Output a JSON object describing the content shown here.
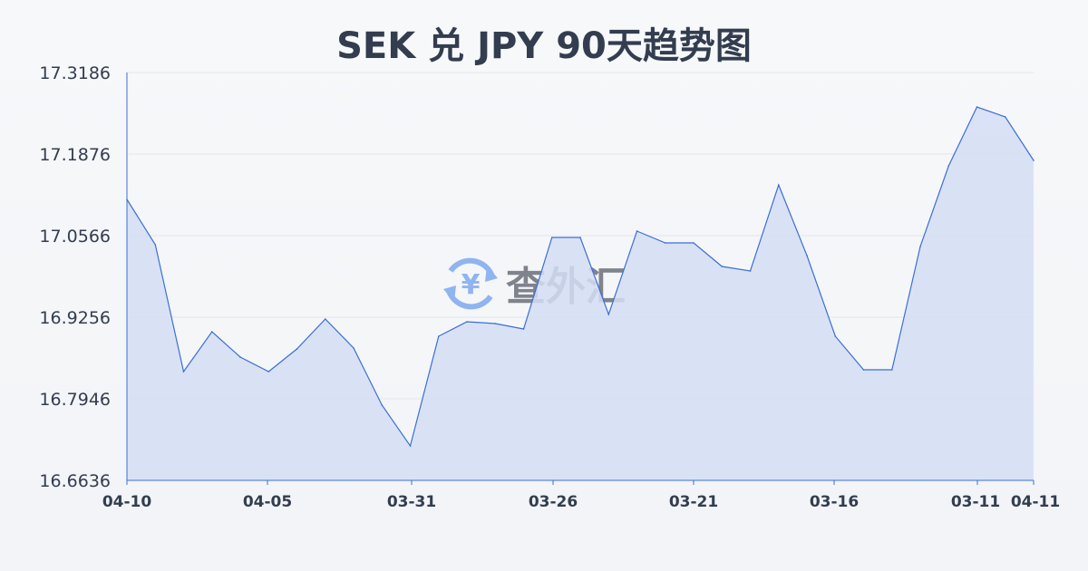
{
  "chart_data": {
    "type": "area",
    "title": "SEK 兑 JPY 90天趋势图",
    "xlabel": "",
    "ylabel": "",
    "ylim": [
      16.6636,
      17.3186
    ],
    "y_ticks": [
      "17.3186",
      "17.1876",
      "17.0566",
      "16.9256",
      "16.7946",
      "16.6636"
    ],
    "x_ticks": [
      "04-10",
      "04-05",
      "03-31",
      "03-26",
      "03-21",
      "03-16",
      "03-11",
      "04-11"
    ],
    "grid": true,
    "line_color": "#3a6fd8",
    "fill_color": "#d3def4",
    "values": [
      17.1148,
      17.042,
      16.8383,
      16.9023,
      16.8615,
      16.8383,
      16.8746,
      16.9227,
      16.8761,
      16.7844,
      16.7189,
      16.895,
      16.9183,
      16.9154,
      16.9067,
      17.0537,
      17.0537,
      16.93,
      17.0639,
      17.0449,
      17.0449,
      17.0071,
      16.9998,
      17.1381,
      17.0246,
      16.895,
      16.8412,
      16.8412,
      17.0391,
      17.1687,
      17.2633,
      17.2473,
      17.1774
    ]
  },
  "watermark": {
    "text": "查外汇",
    "icon": "yen-exchange-icon",
    "color": "#8fb4f0"
  }
}
